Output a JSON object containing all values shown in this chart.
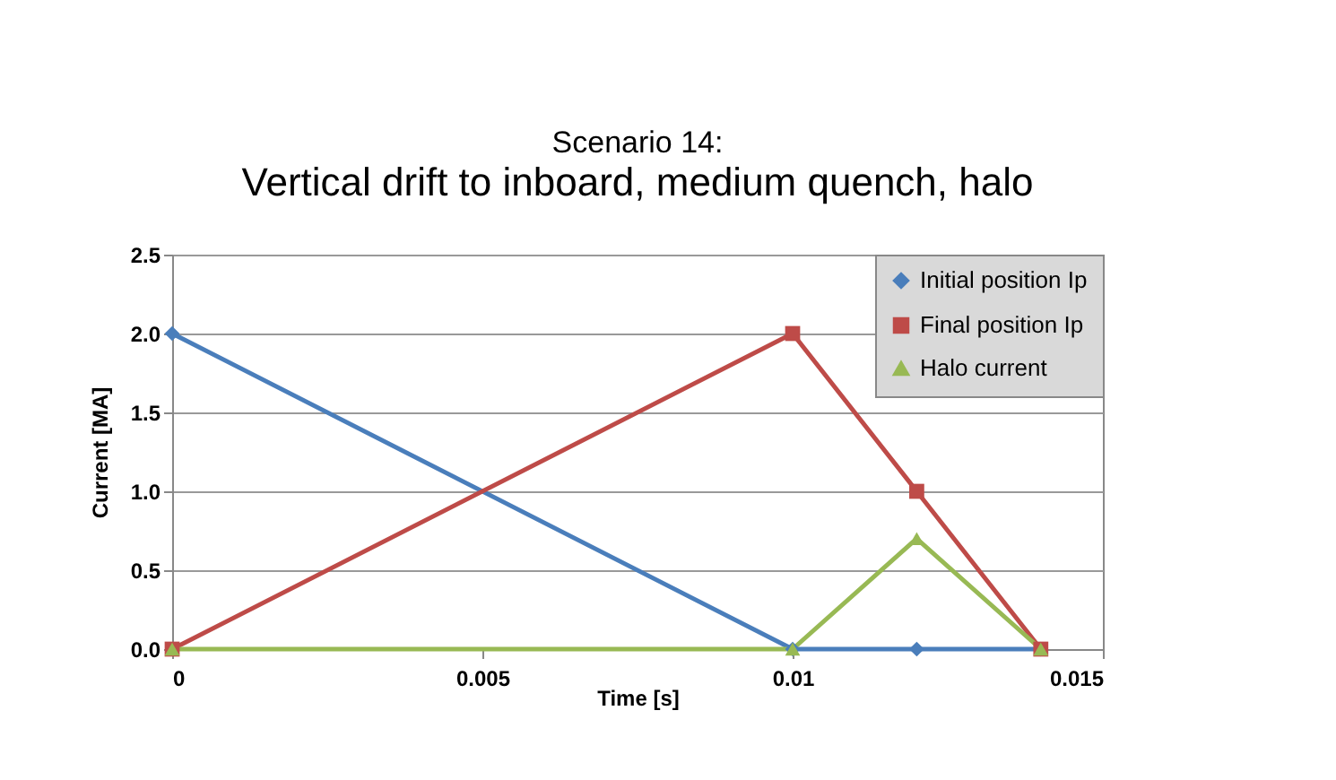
{
  "chart_data": {
    "type": "line",
    "title": "Scenario 14:",
    "subtitle": "Vertical drift to inboard, medium quench, halo",
    "xlabel": "Time [s]",
    "ylabel": "Current [MA]",
    "x": [
      0,
      0.01,
      0.012,
      0.014
    ],
    "series": [
      {
        "name": "Initial position Ip",
        "color": "#4a7ebb",
        "marker": "diamond",
        "values": [
          2,
          0,
          0,
          0
        ]
      },
      {
        "name": "Final position Ip",
        "color": "#be4b48",
        "marker": "square",
        "values": [
          0,
          2,
          1,
          0
        ]
      },
      {
        "name": "Halo current",
        "color": "#98b954",
        "marker": "triangle",
        "values": [
          0,
          0,
          0.7,
          0
        ]
      }
    ],
    "xlim": [
      0,
      0.015
    ],
    "xticks": [
      0,
      0.005,
      0.01,
      0.015
    ],
    "ylim": [
      0,
      2.5
    ],
    "yticks": [
      {
        "value": 0,
        "label": "0.0"
      },
      {
        "value": 0.5,
        "label": "0.5"
      },
      {
        "value": 1,
        "label": "1.0"
      },
      {
        "value": 1.5,
        "label": "1.5"
      },
      {
        "value": 2,
        "label": "2.0"
      },
      {
        "value": 2.5,
        "label": "2.5"
      }
    ],
    "grid": "y",
    "legend": "top right"
  }
}
